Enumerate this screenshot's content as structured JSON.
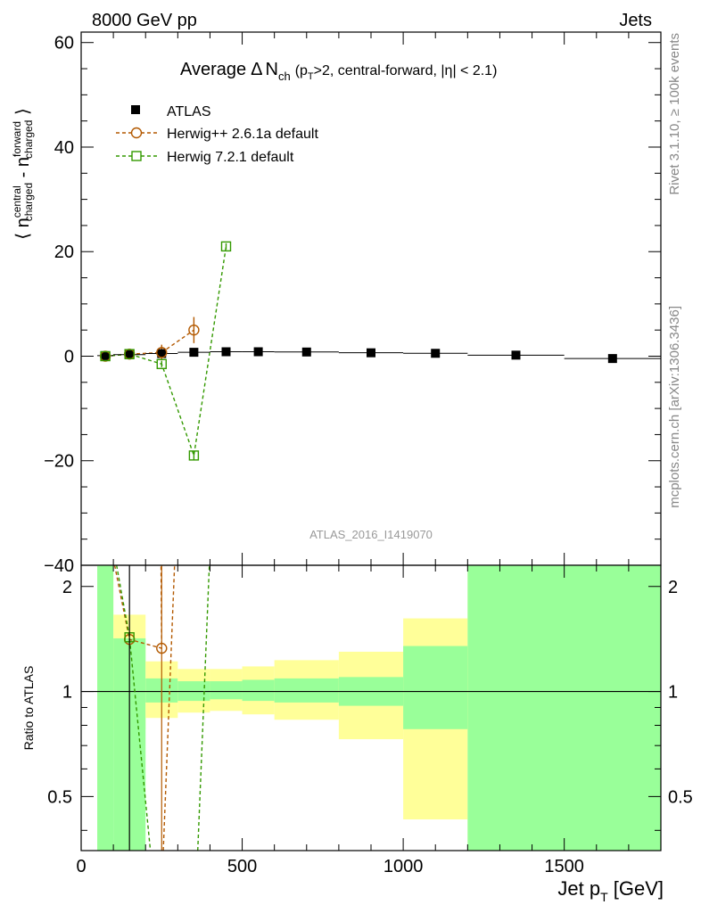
{
  "header": {
    "left": "8000 GeV pp",
    "right": "Jets",
    "side_top": "Rivet 3.1.10, ≥ 100k events",
    "side_bottom": "mcplots.cern.ch [arXiv:1306.3436]",
    "watermark": "ATLAS_2016_I1419070"
  },
  "colors": {
    "data": "#000000",
    "herwigpp": "#b35900",
    "herwig7": "#339900",
    "band_green": "#99ff99",
    "band_yellow": "#ffff99"
  },
  "chart_data": [
    {
      "type": "scatter",
      "panel": "main",
      "title": "Average Δ N_ch (p_T>2, central-forward, |η| < 2.1)",
      "title_parts": {
        "main": "Average",
        "delta": "Δ",
        "n": "N",
        "ch": "ch",
        "open": "(p",
        "t": "T",
        "rest": ">2, central-forward, |η| < 2.1)"
      },
      "ylabel": "⟨ n^central_charged - n^forward_charged ⟩",
      "ylabel_parts": {
        "open": "⟨ n",
        "central": "central",
        "charged1": "charged",
        "minus": " - n",
        "forward": "forward",
        "charged2": "charged",
        "close": " ⟩"
      },
      "xlim": [
        0,
        1800
      ],
      "ylim": [
        -40,
        62
      ],
      "yticks": [
        -40,
        -20,
        0,
        20,
        40,
        60
      ],
      "ytick_labels": [
        "−40",
        "−20",
        "0",
        "20",
        "40",
        "60"
      ],
      "legend": [
        "ATLAS",
        "Herwig++ 2.6.1a default",
        "Herwig 7.2.1 default"
      ],
      "series": [
        {
          "name": "ATLAS",
          "marker": "filled-square",
          "x": [
            75,
            150,
            250,
            350,
            450,
            550,
            700,
            900,
            1100,
            1350,
            1650
          ],
          "y": [
            0.1,
            0.3,
            0.5,
            0.75,
            0.85,
            0.85,
            0.8,
            0.65,
            0.55,
            0.2,
            -0.45
          ],
          "xerr": [
            25,
            50,
            50,
            50,
            50,
            50,
            100,
            100,
            100,
            150,
            150
          ]
        },
        {
          "name": "Herwig++ 2.6.1a default",
          "marker": "open-circle",
          "x": [
            75,
            150,
            250,
            350
          ],
          "y": [
            0.0,
            0.4,
            0.7,
            5.0
          ],
          "yerr": [
            0.2,
            0.3,
            1.5,
            2.5
          ]
        },
        {
          "name": "Herwig 7.2.1 default",
          "marker": "open-square",
          "x": [
            75,
            150,
            250,
            350,
            450
          ],
          "y": [
            0.0,
            0.4,
            -1.5,
            -19.0,
            21.0
          ],
          "yerr": [
            0.2,
            0.3,
            0.6,
            0.8,
            0.6
          ]
        }
      ]
    },
    {
      "type": "line",
      "panel": "ratio",
      "ylabel": "Ratio to ATLAS",
      "xlabel": "Jet p_T [GeV]",
      "xlabel_parts": {
        "main": "Jet p",
        "sub": "T",
        "unit": " [GeV]"
      },
      "xlim": [
        0,
        1800
      ],
      "ylim": [
        0.35,
        2.3
      ],
      "xticks": [
        0,
        500,
        1000,
        1500
      ],
      "xtick_labels": [
        "0",
        "500",
        "1000",
        "1500"
      ],
      "yticks": [
        0.5,
        1,
        2
      ],
      "ytick_labels": [
        "0.5",
        "1",
        "2"
      ],
      "bands": [
        {
          "x0": 50,
          "x1": 100,
          "green": [
            0.35,
            2.3
          ],
          "yellow": [
            0.35,
            2.3
          ]
        },
        {
          "x0": 100,
          "x1": 200,
          "green": [
            0.35,
            1.42
          ],
          "yellow": [
            0.78,
            1.66
          ]
        },
        {
          "x0": 200,
          "x1": 300,
          "green": [
            0.93,
            1.09
          ],
          "yellow": [
            0.84,
            1.22
          ]
        },
        {
          "x0": 300,
          "x1": 400,
          "green": [
            0.94,
            1.07
          ],
          "yellow": [
            0.87,
            1.16
          ]
        },
        {
          "x0": 400,
          "x1": 500,
          "green": [
            0.95,
            1.07
          ],
          "yellow": [
            0.88,
            1.16
          ]
        },
        {
          "x0": 500,
          "x1": 600,
          "green": [
            0.94,
            1.08
          ],
          "yellow": [
            0.86,
            1.18
          ]
        },
        {
          "x0": 600,
          "x1": 800,
          "green": [
            0.93,
            1.09
          ],
          "yellow": [
            0.83,
            1.23
          ]
        },
        {
          "x0": 800,
          "x1": 1000,
          "green": [
            0.91,
            1.1
          ],
          "yellow": [
            0.73,
            1.3
          ]
        },
        {
          "x0": 1000,
          "x1": 1200,
          "green": [
            0.78,
            1.35
          ],
          "yellow": [
            0.43,
            1.62
          ]
        },
        {
          "x0": 1200,
          "x1": 1800,
          "green": [
            0.35,
            2.3
          ],
          "yellow": [
            0.35,
            2.3
          ]
        }
      ],
      "series": [
        {
          "name": "Herwig++ 2.6.1a default",
          "x": [
            150,
            250
          ],
          "y": [
            1.41,
            1.33
          ],
          "offscale": [
            [
              104,
              2.3
            ],
            [
              150,
              1.41
            ],
            [
              250,
              1.33
            ],
            [
              248,
              2.3
            ]
          ],
          "extra_line": [
            [
              255,
              0.35
            ],
            [
              290,
              2.3
            ]
          ],
          "vbar": [
            {
              "x": 250,
              "y0": 0.35,
              "y1": 2.3
            }
          ]
        },
        {
          "name": "Herwig 7.2.1 default",
          "x": [
            150
          ],
          "y": [
            1.43
          ],
          "offscale": [
            [
              110,
              2.3
            ],
            [
              150,
              1.43
            ],
            [
              215,
              0.35
            ]
          ],
          "extra_line": [
            [
              362,
              0.35
            ],
            [
              398,
              2.3
            ]
          ],
          "vbar": []
        },
        {
          "name": "ATLAS",
          "x": [
            150
          ],
          "y": [
            1.0
          ],
          "vbar": [
            {
              "x": 150,
              "y0": 0.35,
              "y1": 2.3
            }
          ]
        }
      ]
    }
  ]
}
